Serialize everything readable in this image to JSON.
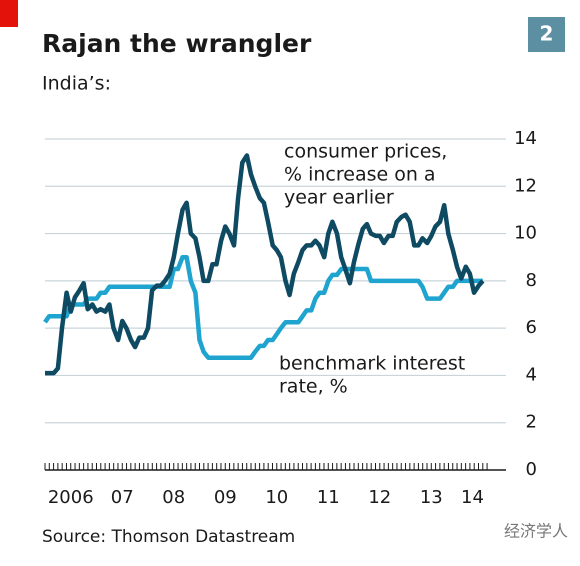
{
  "chart_data": {
    "type": "line",
    "title": "Rajan the wrangler",
    "subtitle": "India’s:",
    "badge": "2",
    "source": "Source: Thomson Datastream",
    "watermark": "经济学人",
    "annotations": [
      {
        "lines": [
          "consumer prices,",
          "% increase on a",
          "year earlier"
        ],
        "series": 0
      },
      {
        "lines": [
          "benchmark interest",
          "rate, %"
        ],
        "series": 1
      }
    ],
    "x": [
      2006.0,
      2006.08,
      2006.17,
      2006.25,
      2006.33,
      2006.42,
      2006.5,
      2006.58,
      2006.67,
      2006.75,
      2006.83,
      2006.92,
      2007.0,
      2007.08,
      2007.17,
      2007.25,
      2007.33,
      2007.42,
      2007.5,
      2007.58,
      2007.67,
      2007.75,
      2007.83,
      2007.92,
      2008.0,
      2008.08,
      2008.17,
      2008.25,
      2008.33,
      2008.42,
      2008.5,
      2008.58,
      2008.67,
      2008.75,
      2008.83,
      2008.92,
      2009.0,
      2009.08,
      2009.17,
      2009.25,
      2009.33,
      2009.42,
      2009.5,
      2009.58,
      2009.67,
      2009.75,
      2009.83,
      2009.92,
      2010.0,
      2010.08,
      2010.17,
      2010.25,
      2010.33,
      2010.42,
      2010.5,
      2010.58,
      2010.67,
      2010.75,
      2010.83,
      2010.92,
      2011.0,
      2011.08,
      2011.17,
      2011.25,
      2011.33,
      2011.42,
      2011.5,
      2011.58,
      2011.67,
      2011.75,
      2011.83,
      2011.92,
      2012.0,
      2012.08,
      2012.17,
      2012.25,
      2012.33,
      2012.42,
      2012.5,
      2012.58,
      2012.67,
      2012.75,
      2012.83,
      2012.92,
      2013.0,
      2013.08,
      2013.17,
      2013.25,
      2013.33,
      2013.42,
      2013.5,
      2013.58,
      2013.67,
      2013.75,
      2013.83,
      2013.92,
      2014.0,
      2014.08,
      2014.17,
      2014.25,
      2014.33,
      2014.42,
      2014.5
    ],
    "series": [
      {
        "name": "consumer prices, % increase on a year earlier",
        "color": "#0f4a63",
        "values": [
          4.1,
          4.1,
          4.1,
          4.3,
          6.0,
          7.5,
          6.7,
          7.3,
          7.6,
          7.9,
          6.8,
          7.0,
          6.7,
          6.8,
          6.7,
          7.0,
          6.0,
          5.5,
          6.3,
          6.0,
          5.5,
          5.2,
          5.6,
          5.6,
          6.0,
          7.6,
          7.8,
          7.8,
          8.0,
          8.3,
          9.0,
          10.0,
          11.0,
          11.3,
          10.0,
          9.8,
          9.0,
          8.0,
          8.0,
          8.7,
          8.7,
          9.7,
          10.3,
          10.0,
          9.5,
          11.5,
          13.0,
          13.3,
          12.5,
          12.0,
          11.5,
          11.3,
          10.5,
          9.5,
          9.3,
          9.0,
          8.0,
          7.4,
          8.3,
          8.8,
          9.3,
          9.5,
          9.5,
          9.7,
          9.5,
          9.0,
          10.0,
          10.5,
          10.0,
          9.0,
          8.5,
          7.9,
          8.8,
          9.5,
          10.2,
          10.4,
          10.0,
          9.9,
          9.9,
          9.6,
          9.9,
          9.9,
          10.5,
          10.7,
          10.8,
          10.5,
          9.5,
          9.5,
          9.8,
          9.6,
          9.9,
          10.3,
          10.5,
          11.2,
          10.0,
          9.3,
          8.6,
          8.1,
          8.6,
          8.3,
          7.5,
          7.8,
          8.0
        ]
      },
      {
        "name": "benchmark interest rate, %",
        "color": "#1fa3cf",
        "values": [
          6.25,
          6.5,
          6.5,
          6.5,
          6.5,
          6.5,
          7.0,
          7.0,
          7.0,
          7.0,
          7.25,
          7.25,
          7.25,
          7.5,
          7.5,
          7.75,
          7.75,
          7.75,
          7.75,
          7.75,
          7.75,
          7.75,
          7.75,
          7.75,
          7.75,
          7.75,
          7.75,
          7.75,
          7.75,
          7.75,
          8.5,
          8.5,
          9.0,
          9.0,
          8.0,
          7.5,
          5.5,
          5.0,
          4.75,
          4.75,
          4.75,
          4.75,
          4.75,
          4.75,
          4.75,
          4.75,
          4.75,
          4.75,
          4.75,
          5.0,
          5.25,
          5.25,
          5.5,
          5.5,
          5.75,
          6.0,
          6.25,
          6.25,
          6.25,
          6.25,
          6.5,
          6.75,
          6.75,
          7.25,
          7.5,
          7.5,
          8.0,
          8.25,
          8.25,
          8.5,
          8.5,
          8.5,
          8.5,
          8.5,
          8.5,
          8.5,
          8.0,
          8.0,
          8.0,
          8.0,
          8.0,
          8.0,
          8.0,
          8.0,
          8.0,
          8.0,
          8.0,
          8.0,
          7.75,
          7.25,
          7.25,
          7.25,
          7.25,
          7.5,
          7.75,
          7.75,
          8.0,
          8.0,
          8.0,
          8.0,
          8.0,
          8.0,
          8.0
        ]
      }
    ],
    "xlim": [
      2006,
      2014.64
    ],
    "xticks": [
      {
        "value": 2006.5,
        "label": "2006"
      },
      {
        "value": 2007.5,
        "label": "07"
      },
      {
        "value": 2008.5,
        "label": "08"
      },
      {
        "value": 2009.5,
        "label": "09"
      },
      {
        "value": 2010.5,
        "label": "10"
      },
      {
        "value": 2011.5,
        "label": "11"
      },
      {
        "value": 2012.5,
        "label": "12"
      },
      {
        "value": 2013.5,
        "label": "13"
      },
      {
        "value": 2014.3,
        "label": "14"
      }
    ],
    "ylim": [
      0,
      14
    ],
    "yticks": [
      0,
      2,
      4,
      6,
      8,
      10,
      12,
      14
    ],
    "grid": true,
    "y_axis_side": "right"
  }
}
